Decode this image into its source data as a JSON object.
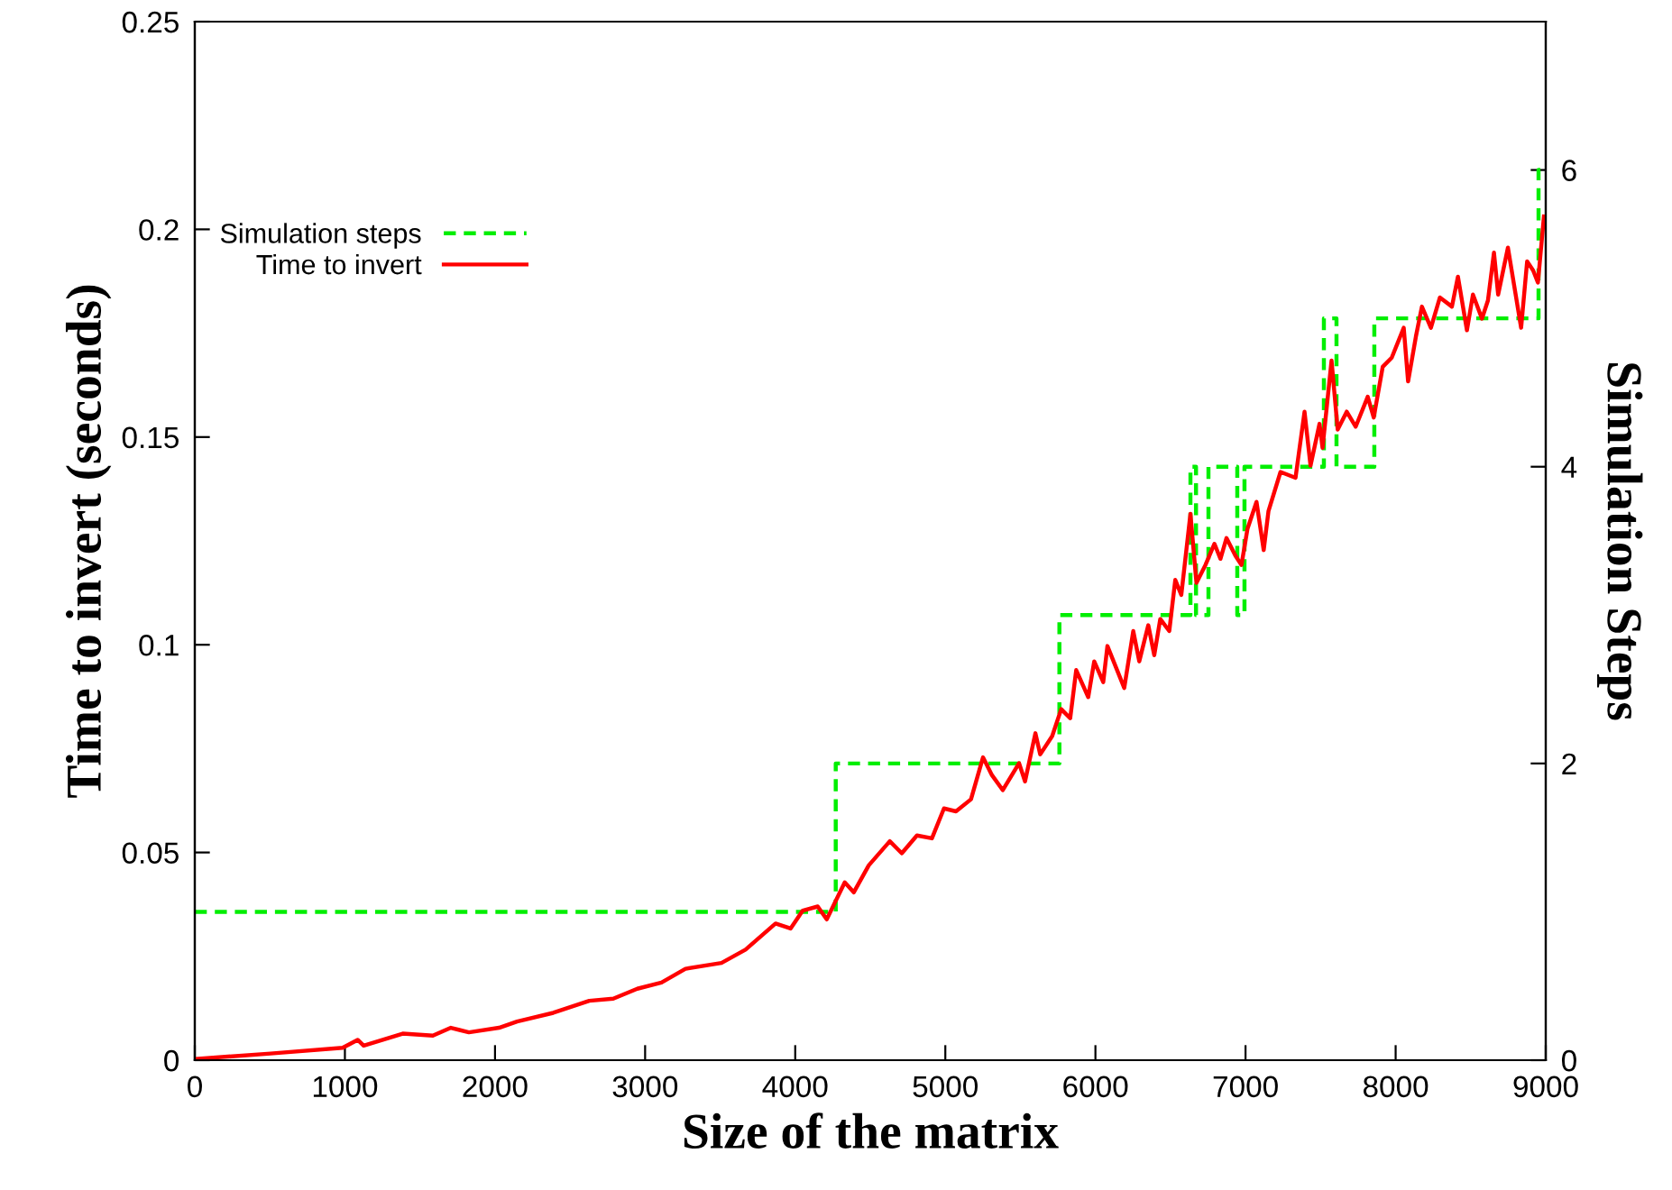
{
  "chart_data": {
    "type": "line",
    "xlabel": "Size of the matrix",
    "ylabel": "Time to invert (seconds)",
    "y2label": "Simulation Steps",
    "xlim": [
      0,
      9000
    ],
    "xticks": [
      0,
      1000,
      2000,
      3000,
      4000,
      5000,
      6000,
      7000,
      8000,
      9000
    ],
    "ylim": [
      0,
      0.25
    ],
    "yticks": [
      0,
      0.05,
      0.1,
      0.15,
      0.2,
      0.25
    ],
    "y2lim": [
      0,
      7
    ],
    "y2ticks": [
      0,
      2,
      4,
      6
    ],
    "legend": "top left",
    "grid": false,
    "series": [
      {
        "name": "Simulation steps",
        "type": "step",
        "axis": "y2",
        "color": "#00ee00",
        "line_style": "dashed",
        "x": [
          0,
          4270,
          5760,
          6633,
          6670,
          6753,
          6945,
          6993,
          7522,
          7606,
          7858,
          8952,
          9000
        ],
        "values": [
          1,
          2,
          3,
          4,
          3,
          4,
          3,
          4,
          5,
          4,
          5,
          6,
          6
        ]
      },
      {
        "name": "Time to invert",
        "color": "#ff0000",
        "line_style": "solid",
        "x": [
          0,
          505,
          985,
          1085,
          1125,
          1385,
          1586,
          1706,
          1826,
          2027,
          2147,
          2388,
          2628,
          2788,
          2948,
          3109,
          3269,
          3509,
          3669,
          3869,
          3969,
          4050,
          4150,
          4210,
          4330,
          4390,
          4490,
          4630,
          4710,
          4811,
          4911,
          4991,
          5071,
          5171,
          5251,
          5311,
          5383,
          5491,
          5531,
          5600,
          5632,
          5712,
          5772,
          5832,
          5872,
          5952,
          5992,
          6052,
          6080,
          6192,
          6252,
          6292,
          6352,
          6392,
          6432,
          6492,
          6532,
          6572,
          6633,
          6673,
          6733,
          6793,
          6833,
          6873,
          6933,
          6973,
          7013,
          7073,
          7121,
          7153,
          7233,
          7333,
          7393,
          7433,
          7493,
          7513,
          7573,
          7614,
          7674,
          7734,
          7814,
          7854,
          7914,
          7974,
          8054,
          8083,
          8135,
          8175,
          8235,
          8295,
          8375,
          8415,
          8475,
          8515,
          8575,
          8615,
          8655,
          8683,
          8748,
          8836,
          8876,
          8916,
          8948,
          8988
        ],
        "values": [
          0.0003,
          0.0016,
          0.003,
          0.0049,
          0.0035,
          0.0064,
          0.0059,
          0.0078,
          0.0067,
          0.0078,
          0.0093,
          0.0114,
          0.0143,
          0.0148,
          0.0172,
          0.0187,
          0.022,
          0.0234,
          0.0266,
          0.0329,
          0.0317,
          0.036,
          0.037,
          0.0339,
          0.0428,
          0.0404,
          0.0469,
          0.0527,
          0.0498,
          0.0541,
          0.0534,
          0.0606,
          0.0599,
          0.0628,
          0.0729,
          0.0686,
          0.065,
          0.0715,
          0.0671,
          0.0787,
          0.0736,
          0.078,
          0.0845,
          0.0823,
          0.0939,
          0.0874,
          0.096,
          0.091,
          0.0997,
          0.0896,
          0.1033,
          0.096,
          0.1047,
          0.0975,
          0.1062,
          0.1033,
          0.1156,
          0.112,
          0.1315,
          0.1149,
          0.1192,
          0.1243,
          0.1207,
          0.1257,
          0.1214,
          0.1192,
          0.1279,
          0.1344,
          0.1228,
          0.1322,
          0.1416,
          0.1402,
          0.1561,
          0.1431,
          0.1532,
          0.1474,
          0.1684,
          0.1518,
          0.1561,
          0.1525,
          0.1597,
          0.1547,
          0.1669,
          0.1691,
          0.1763,
          0.1634,
          0.1742,
          0.1814,
          0.1763,
          0.1836,
          0.1814,
          0.1886,
          0.1757,
          0.1843,
          0.1785,
          0.1829,
          0.1944,
          0.1843,
          0.1956,
          0.1763,
          0.1923,
          0.1901,
          0.1872,
          0.2031
        ]
      }
    ]
  }
}
